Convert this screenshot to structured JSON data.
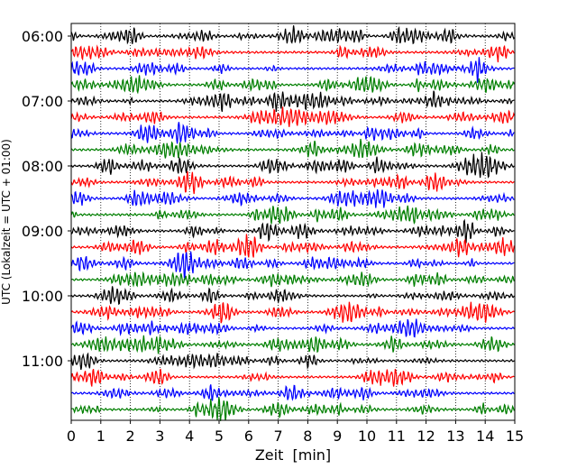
{
  "chart_data": {
    "type": "line",
    "title": "",
    "xlabel": "Zeit  [min]",
    "ylabel": "UTC (Lokalzeit = UTC + 01:00)",
    "xlim": [
      0,
      15
    ],
    "xticks": [
      0,
      1,
      2,
      3,
      4,
      5,
      6,
      7,
      8,
      9,
      10,
      11,
      12,
      13,
      14,
      15
    ],
    "ytick_labels": [
      "06:00",
      "07:00",
      "08:00",
      "09:00",
      "10:00",
      "11:00"
    ],
    "grid": "vertical dotted",
    "trace_interval_minutes": 15,
    "first_trace": "06:00",
    "trace_count": 24,
    "colors": [
      "#000000",
      "#ff0000",
      "#0000ff",
      "#007f00"
    ]
  }
}
